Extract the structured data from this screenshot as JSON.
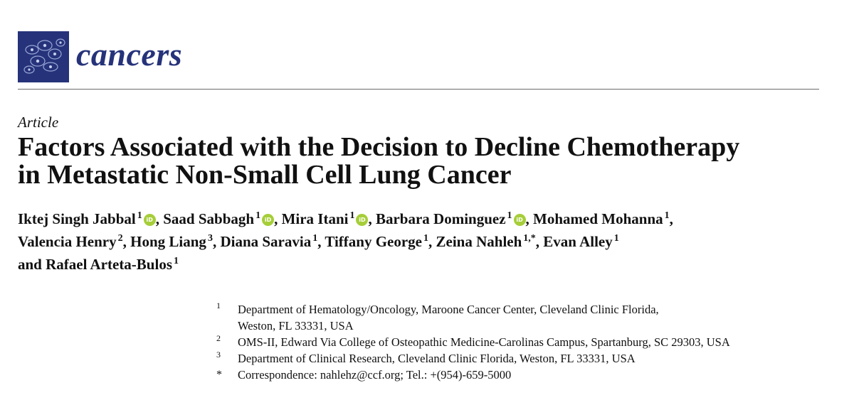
{
  "journal": {
    "name": "cancers",
    "brand_color": "#26337a"
  },
  "article_type": "Article",
  "title": {
    "line1": "Factors Associated with the Decision to Decline Chemotherapy",
    "line2": "in Metastatic Non-Small Cell Lung Cancer"
  },
  "authors": [
    {
      "name": "Iktej Singh Jabbal",
      "sup": "1",
      "orcid": true,
      "sep": ", "
    },
    {
      "name": "Saad Sabbagh",
      "sup": "1",
      "orcid": true,
      "sep": ", "
    },
    {
      "name": "Mira Itani",
      "sup": "1",
      "orcid": true,
      "sep": ", "
    },
    {
      "name": "Barbara Dominguez",
      "sup": "1",
      "orcid": true,
      "sep": ", "
    },
    {
      "name": "Mohamed Mohanna",
      "sup": "1",
      "orcid": false,
      "sep": ","
    },
    {
      "name": "Valencia Henry",
      "sup": "2",
      "orcid": false,
      "sep": ", "
    },
    {
      "name": "Hong Liang",
      "sup": "3",
      "orcid": false,
      "sep": ", "
    },
    {
      "name": "Diana Saravia",
      "sup": "1",
      "orcid": false,
      "sep": ", "
    },
    {
      "name": "Tiffany George",
      "sup": "1",
      "orcid": false,
      "sep": ", "
    },
    {
      "name": "Zeina Nahleh",
      "sup": "1,*",
      "orcid": false,
      "sep": ", "
    },
    {
      "name": "Evan Alley",
      "sup": "1",
      "orcid": false,
      "sep": ""
    },
    {
      "name": "Rafael Arteta-Bulos",
      "sup": "1",
      "orcid": false,
      "sep": ""
    }
  ],
  "authors_conjunction": "and",
  "orcid_label": "iD",
  "affiliations": [
    {
      "mark": "1",
      "lines": [
        "Department of Hematology/Oncology, Maroone Cancer Center, Cleveland Clinic Florida,",
        "Weston, FL 33331, USA"
      ]
    },
    {
      "mark": "2",
      "lines": [
        "OMS-II, Edward Via College of Osteopathic Medicine-Carolinas Campus, Spartanburg, SC 29303, USA"
      ]
    },
    {
      "mark": "3",
      "lines": [
        "Department of Clinical Research, Cleveland Clinic Florida, Weston, FL 33331, USA"
      ]
    },
    {
      "mark": "*",
      "lines": [
        "Correspondence: nahlehz@ccf.org; Tel.: +(954)-659-5000"
      ]
    }
  ]
}
